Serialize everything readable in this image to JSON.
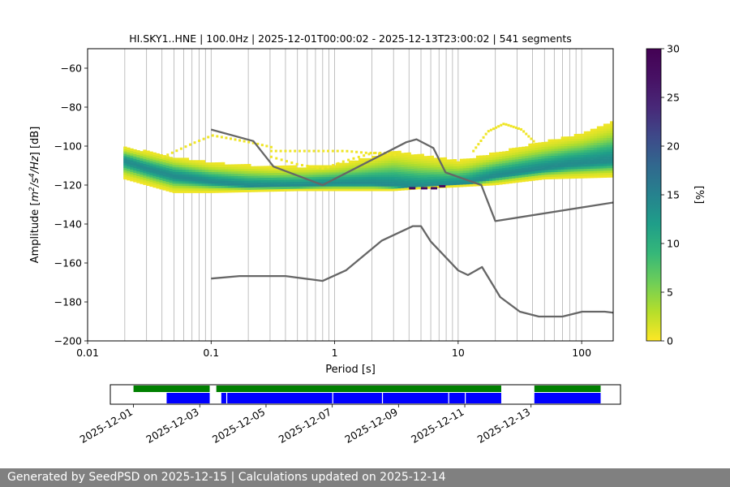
{
  "chart_data": {
    "type": "heatmap",
    "title": "HI.SKY1..HNE | 100.0Hz | 2025-12-01T00:00:02 - 2025-12-13T23:00:02 | 541 segments",
    "xlabel": "Period [s]",
    "ylabel_parts": [
      "Amplitude [",
      "m",
      "2",
      "/s",
      "4",
      "/Hz",
      "] [dB]"
    ],
    "x_scale": "log",
    "xlim": [
      0.01,
      180
    ],
    "ylim": [
      -200,
      -50
    ],
    "x_ticks": [
      {
        "v": 0.01,
        "label": "0.01"
      },
      {
        "v": 0.1,
        "label": "0.1"
      },
      {
        "v": 1,
        "label": "1"
      },
      {
        "v": 10,
        "label": "10"
      },
      {
        "v": 100,
        "label": "100"
      }
    ],
    "y_ticks": [
      {
        "v": -60,
        "label": "−60"
      },
      {
        "v": -80,
        "label": "−80"
      },
      {
        "v": -100,
        "label": "−100"
      },
      {
        "v": -120,
        "label": "−120"
      },
      {
        "v": -140,
        "label": "−140"
      },
      {
        "v": -160,
        "label": "−160"
      },
      {
        "v": -180,
        "label": "−180"
      },
      {
        "v": -200,
        "label": "−200"
      }
    ],
    "colorbar": {
      "label": "[%]",
      "range": [
        0,
        30
      ],
      "ticks": [
        {
          "v": 0,
          "label": "0"
        },
        {
          "v": 5,
          "label": "5"
        },
        {
          "v": 10,
          "label": "10"
        },
        {
          "v": 15,
          "label": "15"
        },
        {
          "v": 20,
          "label": "20"
        },
        {
          "v": 25,
          "label": "25"
        },
        {
          "v": 30,
          "label": "30"
        }
      ],
      "colormap": "viridis_r"
    },
    "psd_center": [
      [
        0.02,
        -108
      ],
      [
        0.03,
        -112
      ],
      [
        0.05,
        -116
      ],
      [
        0.1,
        -119
      ],
      [
        0.2,
        -121
      ],
      [
        0.5,
        -121
      ],
      [
        1,
        -120
      ],
      [
        2,
        -120
      ],
      [
        3,
        -121
      ],
      [
        5,
        -122
      ],
      [
        8,
        -121
      ],
      [
        12,
        -120
      ],
      [
        20,
        -116
      ],
      [
        40,
        -113
      ],
      [
        80,
        -110
      ],
      [
        180,
        -108
      ]
    ],
    "psd_upper": [
      [
        0.02,
        -101
      ],
      [
        0.05,
        -106
      ],
      [
        0.1,
        -109
      ],
      [
        0.3,
        -111
      ],
      [
        0.6,
        -111
      ],
      [
        1,
        -110
      ],
      [
        2,
        -106
      ],
      [
        3,
        -103
      ],
      [
        5,
        -105
      ],
      [
        10,
        -108
      ],
      [
        20,
        -104
      ],
      [
        50,
        -98
      ],
      [
        100,
        -94
      ],
      [
        180,
        -88
      ]
    ],
    "psd_lower": [
      [
        0.02,
        -117
      ],
      [
        0.05,
        -124
      ],
      [
        0.1,
        -124
      ],
      [
        0.5,
        -123
      ],
      [
        1,
        -123
      ],
      [
        3,
        -123
      ],
      [
        5,
        -122
      ],
      [
        10,
        -121
      ],
      [
        20,
        -120
      ],
      [
        50,
        -117
      ],
      [
        180,
        -116
      ]
    ],
    "sparse_features": [
      {
        "name": "arc-short-period",
        "points": [
          [
            0.04,
            -106
          ],
          [
            0.07,
            -99
          ],
          [
            0.1,
            -95
          ],
          [
            0.15,
            -97
          ],
          [
            0.22,
            -99
          ],
          [
            0.3,
            -101
          ]
        ]
      },
      {
        "name": "flat-mid",
        "points": [
          [
            0.3,
            -103
          ],
          [
            0.5,
            -103
          ],
          [
            0.8,
            -103
          ],
          [
            1.2,
            -103
          ],
          [
            1.8,
            -104
          ],
          [
            2.5,
            -104
          ]
        ]
      },
      {
        "name": "dip-mid",
        "points": [
          [
            0.3,
            -106
          ],
          [
            0.5,
            -110
          ],
          [
            0.8,
            -112
          ],
          [
            1.2,
            -108
          ],
          [
            2,
            -104
          ],
          [
            3,
            -105
          ]
        ]
      },
      {
        "name": "arc-long-period",
        "points": [
          [
            13,
            -103
          ],
          [
            17,
            -93
          ],
          [
            23,
            -89
          ],
          [
            32,
            -92
          ],
          [
            40,
            -98
          ]
        ]
      }
    ],
    "peak_cells": [
      [
        4,
        -122
      ],
      [
        5,
        -122
      ],
      [
        6,
        -122
      ],
      [
        7,
        -121
      ]
    ],
    "nhnm": {
      "name": "NHNM",
      "x": [
        0.1,
        0.22,
        0.32,
        0.8,
        3.8,
        4.6,
        6.3,
        7.9,
        15.4,
        20,
        354.8
      ],
      "y": [
        -91.5,
        -97.4,
        -110.5,
        -120,
        -98,
        -96.5,
        -101,
        -113.5,
        -120,
        -138.5,
        -126
      ]
    },
    "nlnm": {
      "name": "NLNM",
      "x": [
        0.1,
        0.17,
        0.4,
        0.8,
        1.24,
        2.4,
        4.3,
        5,
        6,
        10,
        12,
        15.6,
        21.9,
        31.6,
        45,
        70,
        101,
        154,
        328
      ],
      "y": [
        -168,
        -166.7,
        -166.7,
        -169.2,
        -163.7,
        -148.6,
        -141.1,
        -141.1,
        -149,
        -163.8,
        -166.2,
        -162.1,
        -177.5,
        -185,
        -187.5,
        -187.5,
        -185,
        -185,
        -187.5
      ]
    },
    "availability": {
      "ticks": [
        "2025-12-01",
        "2025-12-03",
        "2025-12-05",
        "2025-12-07",
        "2025-12-09",
        "2025-12-11",
        "2025-12-13"
      ],
      "range_days": [
        -0.7,
        14.7
      ],
      "data_bars": [
        [
          0,
          2.3
        ],
        [
          2.5,
          11.1
        ],
        [
          12.1,
          14.1
        ]
      ],
      "used_segments": [
        [
          1,
          2.3
        ],
        [
          2.65,
          11.1
        ],
        [
          12.1,
          14.1
        ]
      ],
      "gap_marks": [
        2.8,
        6.0,
        7.5,
        9.5,
        10.0
      ],
      "data_color": "#008000",
      "used_color": "#0000ff"
    }
  },
  "footer": {
    "text": "Generated by SeedPSD on 2025-12-15 | Calculations updated on 2025-12-14"
  }
}
